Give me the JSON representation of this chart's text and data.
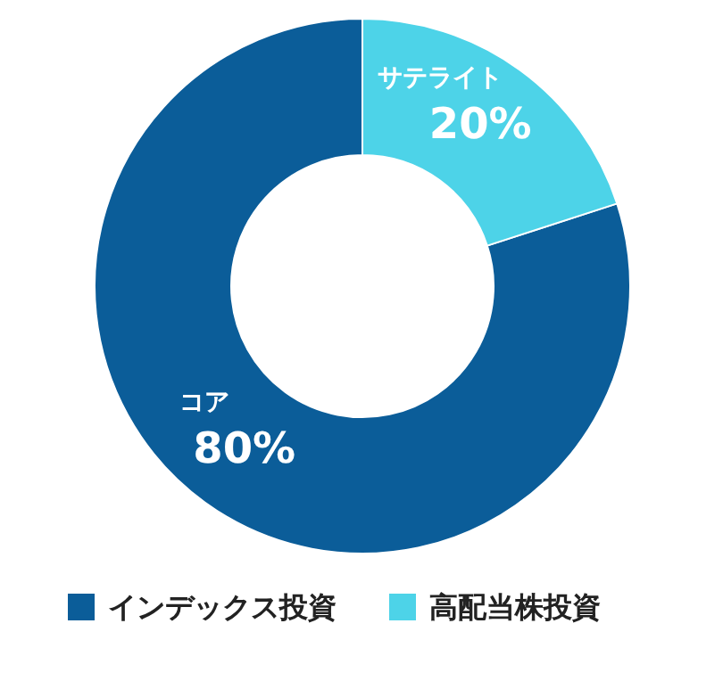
{
  "chart_data": {
    "type": "donut",
    "categories": [
      "インデックス投資",
      "高配当株投資"
    ],
    "values": [
      80,
      20
    ],
    "colors": [
      "#0b5d99",
      "#4dd3e8"
    ],
    "value_labels": [
      "80%",
      "20%"
    ],
    "annotations": [
      {
        "text": "コア",
        "x": "インデックス投資"
      },
      {
        "text": "サテライト",
        "x": "高配当株投資"
      }
    ],
    "legend": "bottom"
  }
}
